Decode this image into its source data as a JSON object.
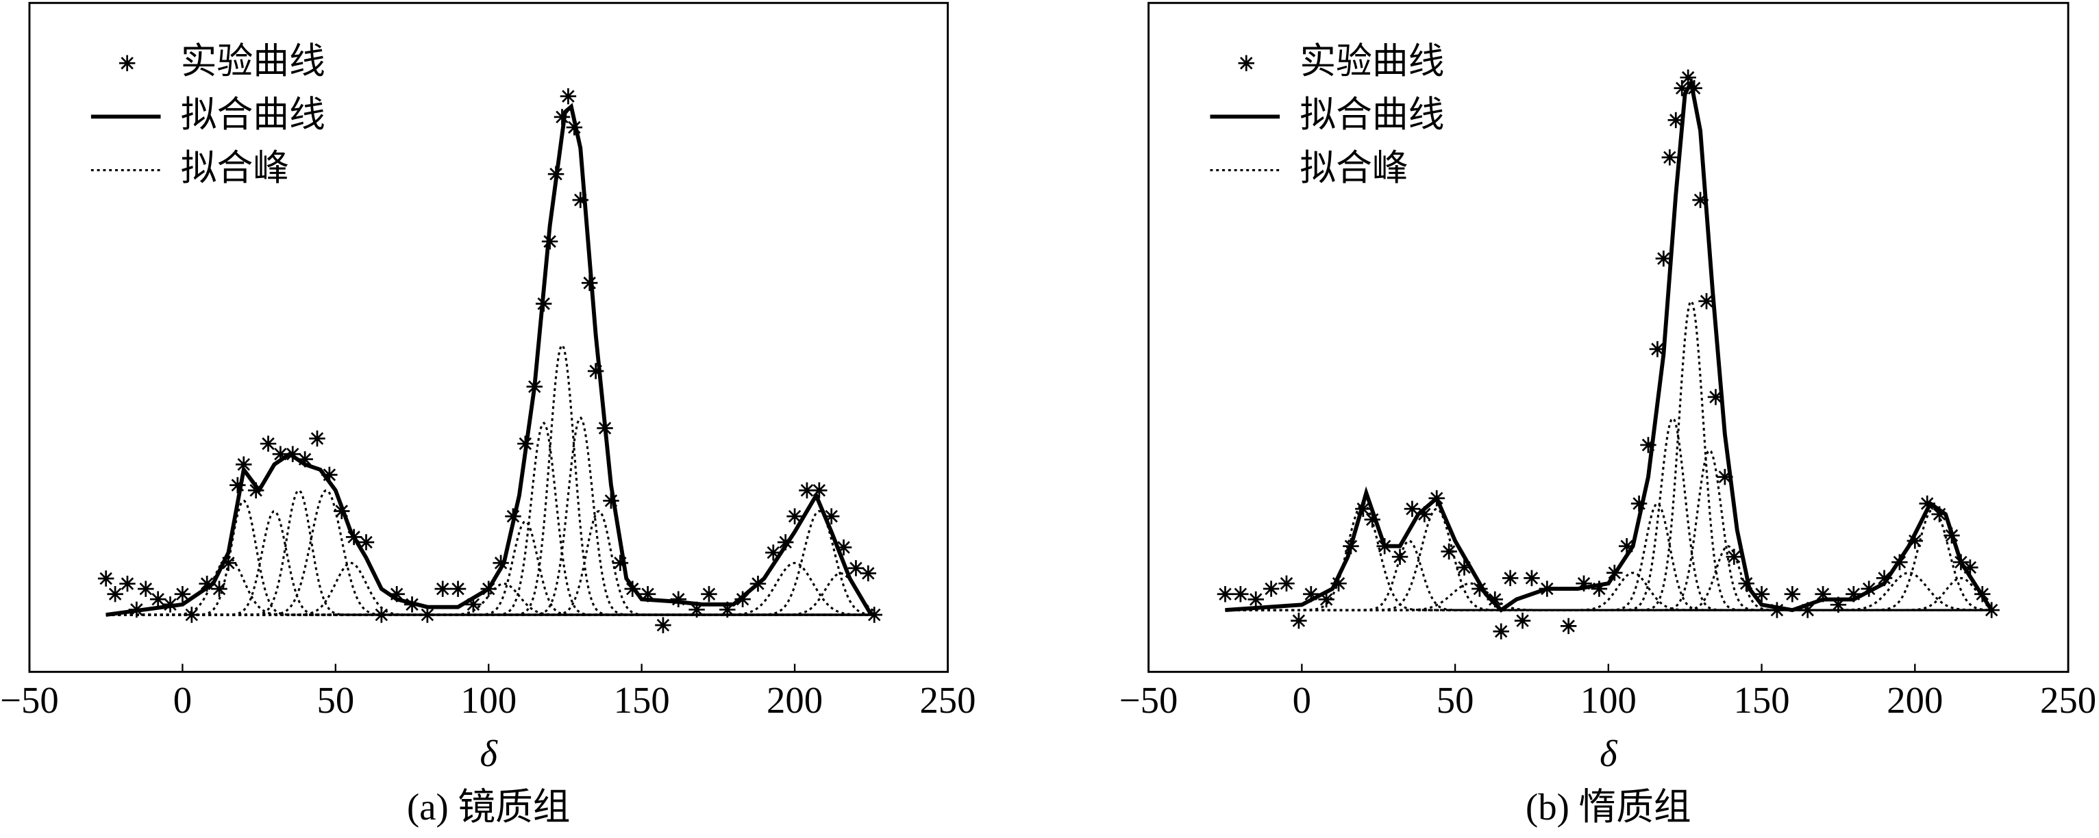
{
  "chart_data": [
    {
      "type": "line",
      "caption": "(a) 镜质组",
      "xlabel": "δ",
      "xlim": [
        -50,
        250
      ],
      "xticks": [
        {
          "value": -50,
          "label": "−50"
        },
        0,
        50,
        100,
        150,
        200,
        250
      ],
      "ylim": [
        -0.11,
        1.18
      ],
      "legend": "upper left",
      "grid": false,
      "series": [
        {
          "name": "实验曲线",
          "style": "marker",
          "color": "#000000",
          "x": [
            -25,
            -22,
            -18,
            -15,
            -12,
            -8,
            -4,
            0,
            3,
            8,
            12,
            15,
            18,
            20,
            24,
            28,
            32,
            36,
            40,
            44,
            48,
            52,
            56,
            60,
            65,
            70,
            75,
            80,
            85,
            90,
            95,
            100,
            104,
            108,
            112,
            115,
            118,
            120,
            122,
            124,
            126,
            128,
            130,
            133,
            135,
            138,
            140,
            143,
            147,
            152,
            157,
            162,
            168,
            172,
            178,
            183,
            188,
            193,
            197,
            200,
            204,
            208,
            212,
            216,
            220,
            224,
            226
          ],
          "values": [
            0.07,
            0.04,
            0.06,
            0.01,
            0.05,
            0.03,
            0.02,
            0.04,
            0.0,
            0.06,
            0.05,
            0.1,
            0.25,
            0.29,
            0.24,
            0.33,
            0.31,
            0.31,
            0.3,
            0.34,
            0.27,
            0.2,
            0.15,
            0.14,
            0.0,
            0.04,
            0.02,
            0.0,
            0.05,
            0.05,
            0.02,
            0.05,
            0.1,
            0.19,
            0.33,
            0.44,
            0.6,
            0.72,
            0.85,
            0.96,
            1.0,
            0.94,
            0.8,
            0.64,
            0.47,
            0.36,
            0.22,
            0.1,
            0.05,
            0.04,
            -0.02,
            0.03,
            0.01,
            0.04,
            0.01,
            0.03,
            0.06,
            0.12,
            0.14,
            0.19,
            0.24,
            0.24,
            0.19,
            0.13,
            0.09,
            0.08,
            0.0
          ]
        },
        {
          "name": "拟合曲线",
          "style": "solid",
          "color": "#000000",
          "x": [
            -25,
            0,
            10,
            15,
            20,
            25,
            30,
            35,
            40,
            45,
            50,
            55,
            60,
            65,
            70,
            80,
            90,
            100,
            105,
            110,
            115,
            120,
            125,
            127,
            130,
            135,
            140,
            145,
            150,
            160,
            170,
            180,
            190,
            200,
            207,
            212,
            218,
            225
          ],
          "values": [
            0,
            0.02,
            0.06,
            0.12,
            0.28,
            0.24,
            0.29,
            0.31,
            0.29,
            0.28,
            0.24,
            0.16,
            0.11,
            0.05,
            0.03,
            0.015,
            0.015,
            0.05,
            0.1,
            0.23,
            0.44,
            0.75,
            0.97,
            0.98,
            0.9,
            0.54,
            0.25,
            0.07,
            0.03,
            0.026,
            0.02,
            0.02,
            0.07,
            0.16,
            0.23,
            0.16,
            0.07,
            0
          ]
        },
        {
          "name": "拟合峰",
          "style": "dotted",
          "color": "#000000",
          "peaks": [
            {
              "center": 15,
              "height": 0.11,
              "width": 5
            },
            {
              "center": 20,
              "height": 0.22,
              "width": 4
            },
            {
              "center": 30,
              "height": 0.2,
              "width": 4
            },
            {
              "center": 38,
              "height": 0.24,
              "width": 4
            },
            {
              "center": 47,
              "height": 0.24,
              "width": 5
            },
            {
              "center": 55,
              "height": 0.1,
              "width": 5
            },
            {
              "center": 105,
              "height": 0.06,
              "width": 5
            },
            {
              "center": 112,
              "height": 0.18,
              "width": 4
            },
            {
              "center": 118,
              "height": 0.37,
              "width": 4
            },
            {
              "center": 124,
              "height": 0.52,
              "width": 4
            },
            {
              "center": 130,
              "height": 0.38,
              "width": 4
            },
            {
              "center": 136,
              "height": 0.2,
              "width": 4
            },
            {
              "center": 200,
              "height": 0.1,
              "width": 6
            },
            {
              "center": 208,
              "height": 0.2,
              "width": 5
            },
            {
              "center": 215,
              "height": 0.08,
              "width": 5
            }
          ]
        }
      ]
    },
    {
      "type": "line",
      "caption": "(b) 惰质组",
      "xlabel": "δ",
      "xlim": [
        -50,
        250
      ],
      "xticks": [
        {
          "value": -50,
          "label": "−50"
        },
        0,
        50,
        100,
        150,
        200,
        250
      ],
      "ylim": [
        -0.116,
        1.14
      ],
      "legend": "upper left",
      "grid": false,
      "series": [
        {
          "name": "实验曲线",
          "style": "marker",
          "color": "#000000",
          "x": [
            -25,
            -20,
            -15,
            -10,
            -5,
            -1,
            3,
            8,
            12,
            16,
            20,
            23,
            27,
            32,
            36,
            40,
            44,
            48,
            53,
            58,
            63,
            65,
            68,
            72,
            75,
            80,
            87,
            92,
            97,
            102,
            106,
            110,
            113,
            116,
            118,
            120,
            122,
            124,
            126,
            128,
            130,
            132,
            135,
            138,
            141,
            145,
            150,
            155,
            160,
            165,
            170,
            175,
            180,
            185,
            190,
            195,
            200,
            204,
            208,
            212,
            215,
            218,
            222,
            225
          ],
          "values": [
            0.03,
            0.03,
            0.02,
            0.04,
            0.05,
            -0.02,
            0.03,
            0.02,
            0.05,
            0.12,
            0.19,
            0.17,
            0.12,
            0.1,
            0.19,
            0.18,
            0.21,
            0.11,
            0.08,
            0.04,
            0.02,
            -0.04,
            0.06,
            -0.02,
            0.06,
            0.04,
            -0.03,
            0.05,
            0.04,
            0.07,
            0.12,
            0.2,
            0.31,
            0.49,
            0.66,
            0.85,
            0.92,
            0.98,
            1.0,
            0.98,
            0.77,
            0.58,
            0.4,
            0.25,
            0.1,
            0.05,
            0.03,
            0.0,
            0.03,
            0.0,
            0.03,
            0.01,
            0.03,
            0.04,
            0.06,
            0.09,
            0.13,
            0.2,
            0.18,
            0.14,
            0.09,
            0.08,
            0.03,
            0.0
          ]
        },
        {
          "name": "拟合曲线",
          "style": "solid",
          "color": "#000000",
          "x": [
            -25,
            0,
            10,
            15,
            21,
            27,
            32,
            38,
            44,
            50,
            55,
            60,
            65,
            70,
            80,
            90,
            100,
            108,
            113,
            118,
            122,
            125,
            127,
            130,
            134,
            138,
            142,
            146,
            150,
            160,
            170,
            180,
            190,
            198,
            205,
            210,
            215,
            225
          ],
          "values": [
            0,
            0.01,
            0.04,
            0.1,
            0.22,
            0.12,
            0.12,
            0.18,
            0.21,
            0.13,
            0.08,
            0.03,
            0.0,
            0.02,
            0.04,
            0.04,
            0.05,
            0.12,
            0.25,
            0.48,
            0.78,
            0.97,
            0.99,
            0.9,
            0.6,
            0.33,
            0.15,
            0.04,
            0.01,
            0.0,
            0.02,
            0.02,
            0.05,
            0.12,
            0.2,
            0.18,
            0.09,
            0
          ]
        },
        {
          "name": "拟合峰",
          "style": "dotted",
          "color": "#000000",
          "peaks": [
            {
              "center": 20,
              "height": 0.2,
              "width": 5
            },
            {
              "center": 35,
              "height": 0.13,
              "width": 4
            },
            {
              "center": 44,
              "height": 0.19,
              "width": 5
            },
            {
              "center": 55,
              "height": 0.05,
              "width": 6
            },
            {
              "center": 108,
              "height": 0.07,
              "width": 5
            },
            {
              "center": 116,
              "height": 0.2,
              "width": 4
            },
            {
              "center": 121,
              "height": 0.36,
              "width": 4
            },
            {
              "center": 127,
              "height": 0.58,
              "width": 4
            },
            {
              "center": 133,
              "height": 0.3,
              "width": 4
            },
            {
              "center": 139,
              "height": 0.12,
              "width": 4
            },
            {
              "center": 198,
              "height": 0.07,
              "width": 6
            },
            {
              "center": 206,
              "height": 0.19,
              "width": 5
            },
            {
              "center": 215,
              "height": 0.06,
              "width": 5
            }
          ]
        }
      ]
    }
  ]
}
